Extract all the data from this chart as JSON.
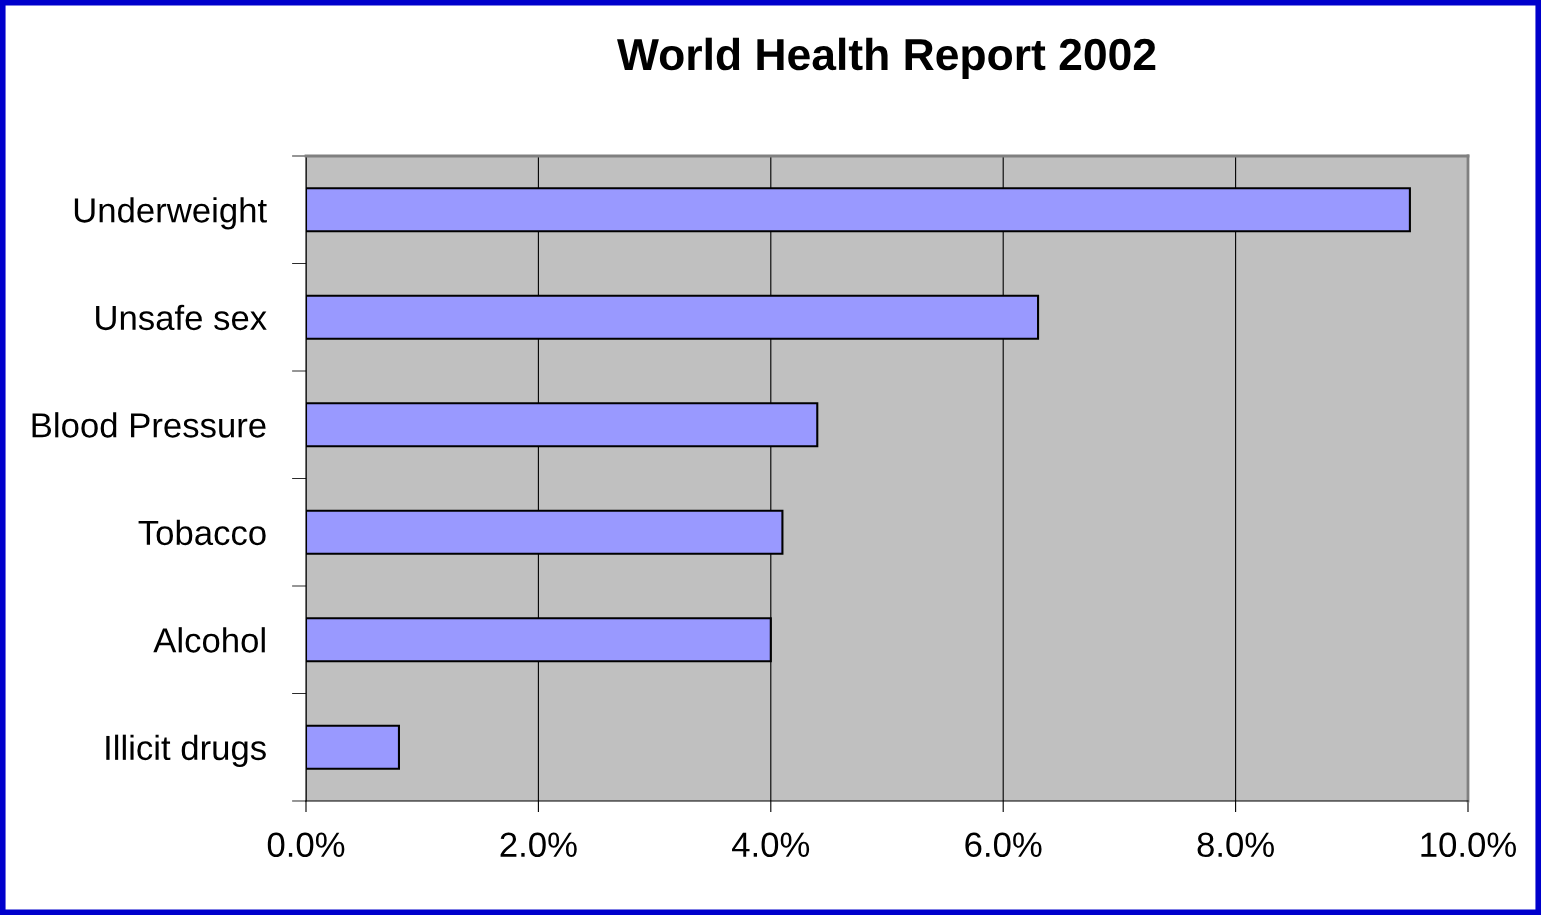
{
  "chart_data": {
    "type": "bar",
    "orientation": "horizontal",
    "title": "World Health Report 2002",
    "categories": [
      "Underweight",
      "Unsafe sex",
      "Blood Pressure",
      "Tobacco",
      "Alcohol",
      "Illicit drugs"
    ],
    "values": [
      9.5,
      6.3,
      4.4,
      4.1,
      4.0,
      0.8
    ],
    "color": "#9999ff",
    "xlim": [
      0,
      10
    ],
    "xticks": [
      {
        "value": 0,
        "label": "0.0%"
      },
      {
        "value": 2,
        "label": "2.0%"
      },
      {
        "value": 4,
        "label": "4.0%"
      },
      {
        "value": 6,
        "label": "6.0%"
      },
      {
        "value": 8,
        "label": "8.0%"
      },
      {
        "value": 10,
        "label": "10.0%"
      }
    ],
    "grid": "x",
    "legend": false
  }
}
